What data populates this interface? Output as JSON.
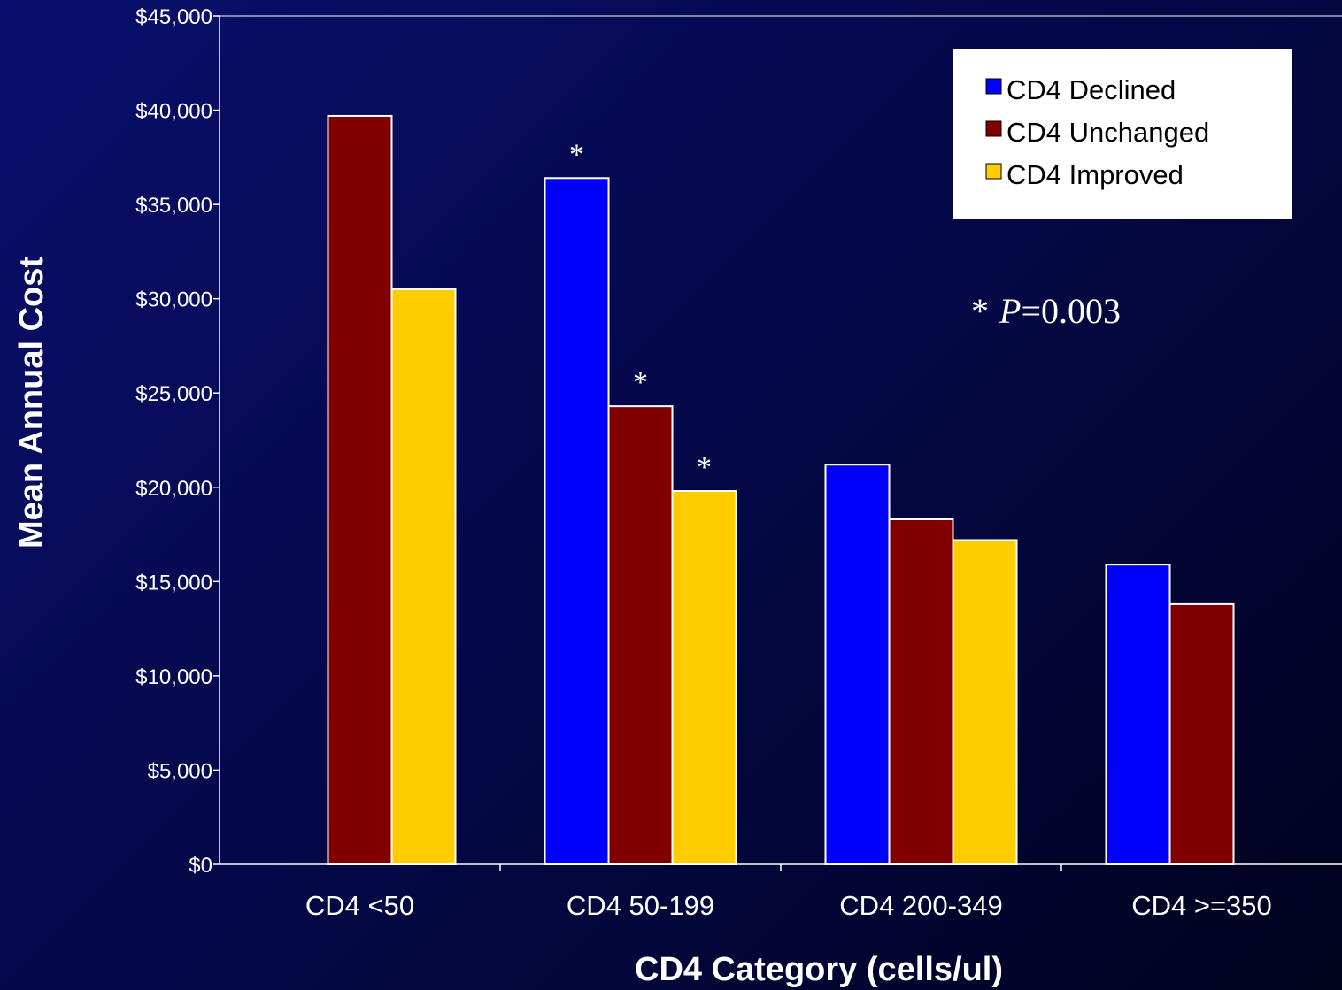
{
  "chart_data": {
    "type": "bar",
    "categories": [
      "CD4 <50",
      "CD4 50-199",
      "CD4 200-349",
      "CD4 >=350"
    ],
    "series": [
      {
        "name": "CD4 Declined",
        "color": "#0000ff",
        "values": [
          null,
          36400,
          21200,
          15900
        ]
      },
      {
        "name": "CD4 Unchanged",
        "color": "#800000",
        "values": [
          39700,
          24300,
          18300,
          13800
        ]
      },
      {
        "name": "CD4 Improved",
        "color": "#ffcc00",
        "values": [
          30500,
          19800,
          17200,
          null
        ]
      }
    ],
    "xlabel": "CD4 Category (cells/ul)",
    "ylabel": "Mean Annual Cost",
    "ylim": [
      0,
      45000
    ],
    "yticks": [
      0,
      5000,
      10000,
      15000,
      20000,
      25000,
      30000,
      35000,
      40000,
      45000
    ],
    "ytick_labels": [
      "$0",
      "$5,000",
      "$10,000",
      "$15,000",
      "$20,000",
      "$25,000",
      "$30,000",
      "$35,000",
      "$40,000",
      "$45,000"
    ],
    "significance_marks": [
      {
        "category": "CD4 50-199",
        "series": "CD4 Declined",
        "symbol": "*"
      },
      {
        "category": "CD4 50-199",
        "series": "CD4 Unchanged",
        "symbol": "*"
      },
      {
        "category": "CD4 50-199",
        "series": "CD4 Improved",
        "symbol": "*"
      }
    ],
    "annotation": {
      "symbol": "*",
      "p_label": "P",
      "p_value": "=0.003"
    },
    "legend_position": "top-right",
    "grid": false
  },
  "colors": {
    "axis": "#ffffff",
    "text": "#ffffff",
    "legend_background": "#ffffff",
    "legend_text": "#000000"
  }
}
